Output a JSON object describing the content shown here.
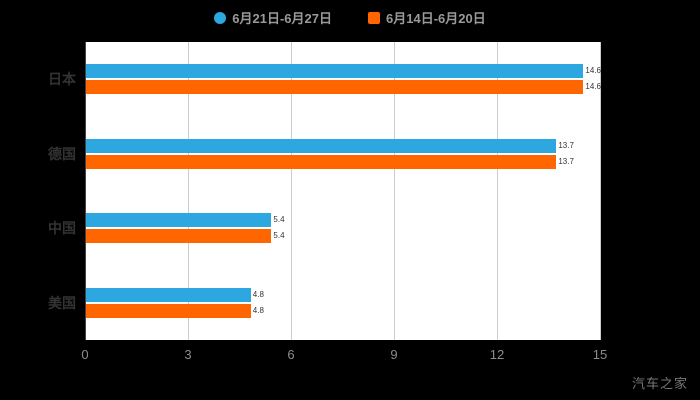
{
  "legend": {
    "items": [
      {
        "label": "6月21日-6月27日",
        "color": "#2da7e0",
        "shape": "circle"
      },
      {
        "label": "6月14日-6月20日",
        "color": "#ff6600",
        "shape": "square"
      }
    ]
  },
  "chart_data": {
    "type": "bar",
    "orientation": "horizontal",
    "title": "",
    "categories": [
      "日本",
      "德国",
      "中国",
      "美国"
    ],
    "series": [
      {
        "name": "6月21日-6月27日",
        "color": "#2da7e0",
        "values": [
          14.6,
          13.7,
          5.4,
          4.8
        ]
      },
      {
        "name": "6月14日-6月20日",
        "color": "#ff6600",
        "values": [
          14.6,
          13.7,
          5.4,
          4.8
        ]
      }
    ],
    "xlim": [
      0,
      15
    ],
    "xticks": [
      0,
      3,
      6,
      9,
      12,
      15
    ],
    "grid": true,
    "legend_position": "top",
    "plot_bg": "#ffffff",
    "page_bg": "#000000",
    "grid_color": "#cccccc",
    "tick_color": "#8c8c8c"
  },
  "watermark": "汽车之家"
}
